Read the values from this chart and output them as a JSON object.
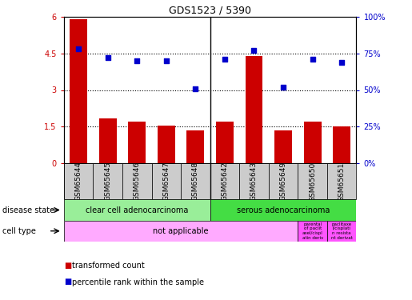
{
  "title": "GDS1523 / 5390",
  "samples": [
    "GSM65644",
    "GSM65645",
    "GSM65646",
    "GSM65647",
    "GSM65648",
    "GSM65642",
    "GSM65643",
    "GSM65649",
    "GSM65650",
    "GSM65651"
  ],
  "bar_values": [
    5.9,
    1.85,
    1.7,
    1.55,
    1.35,
    1.7,
    4.4,
    1.35,
    1.7,
    1.5
  ],
  "dot_values_pct": [
    78,
    72,
    70,
    70,
    51,
    71,
    77,
    52,
    71,
    69
  ],
  "bar_color": "#cc0000",
  "dot_color": "#0000cc",
  "ylim_left": [
    0,
    6
  ],
  "ylim_right": [
    0,
    100
  ],
  "yticks_left": [
    0,
    1.5,
    3.0,
    4.5,
    6.0
  ],
  "ytick_labels_left": [
    "0",
    "1.5",
    "3",
    "4.5",
    "6"
  ],
  "yticks_right": [
    0,
    25,
    50,
    75,
    100
  ],
  "ytick_labels_right": [
    "0%",
    "25%",
    "50%",
    "75%",
    "100%"
  ],
  "hlines": [
    1.5,
    3.0,
    4.5
  ],
  "disease_state_groups": [
    {
      "label": "clear cell adenocarcinoma",
      "start": 0,
      "end": 5,
      "color": "#99ee99"
    },
    {
      "label": "serous adenocarcinoma",
      "start": 5,
      "end": 10,
      "color": "#44dd44"
    }
  ],
  "cell_type_group_main": {
    "label": "not applicable",
    "start": 0,
    "end": 8,
    "color": "#ffaaff"
  },
  "cell_type_group_p1": {
    "label": "parental\nof paclit\naxel/cispl\natin deriv",
    "start": 8,
    "end": 9,
    "color": "#ff55ff"
  },
  "cell_type_group_p2": {
    "label": "paclitaxe\nl/cisplati\nn resista\nnt derivat",
    "start": 9,
    "end": 10,
    "color": "#ff55ff"
  },
  "legend_items": [
    {
      "label": "transformed count",
      "color": "#cc0000"
    },
    {
      "label": "percentile rank within the sample",
      "color": "#0000cc"
    }
  ],
  "group_separator": 4.5,
  "sample_box_color": "#cccccc",
  "label_disease_state": "disease state",
  "label_cell_type": "cell type"
}
